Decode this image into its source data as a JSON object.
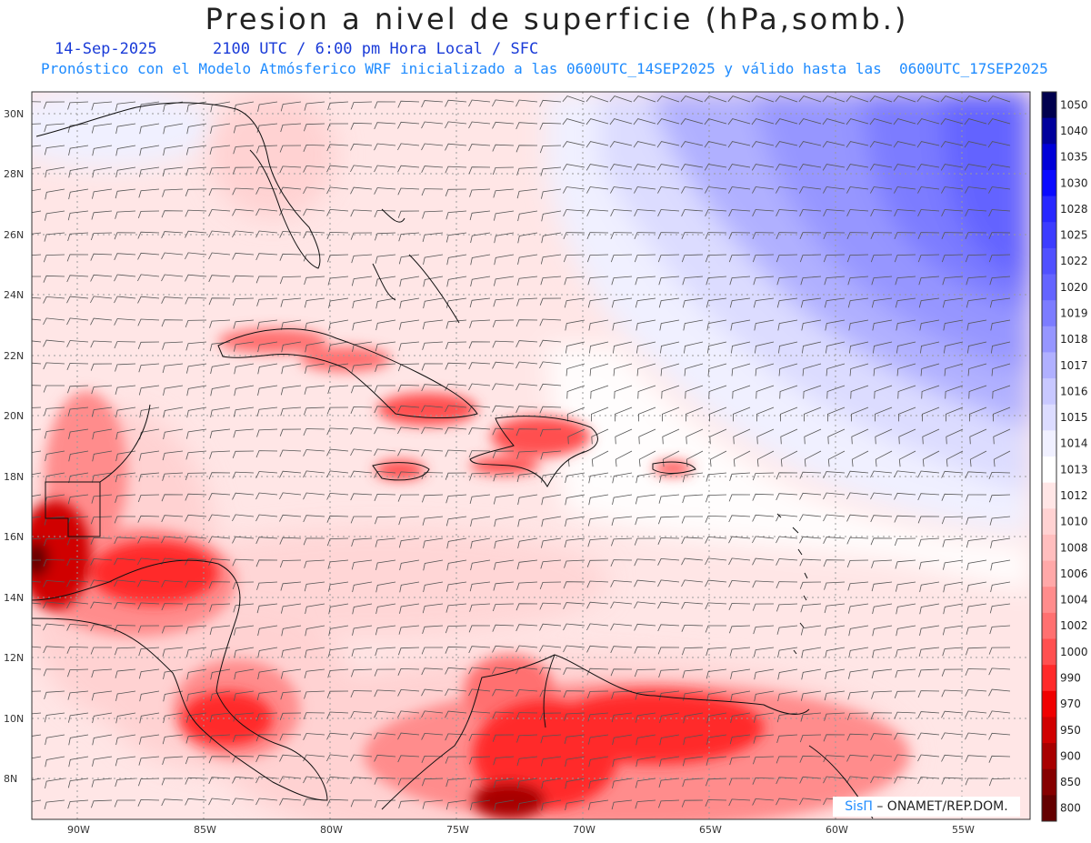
{
  "header": {
    "title": "Presion a nivel de superficie (hPa,somb.)",
    "date": "14-Sep-2025",
    "time_info": "2100 UTC / 6:00 pm Hora Local / SFC",
    "model_info": "Pronóstico con el Modelo Atmósferico WRF inicializado a las 0600UTC_14SEP2025 y válido hasta las  0600UTC_17SEP2025"
  },
  "map": {
    "lat_ticks": [
      "30N",
      "28N",
      "26N",
      "24N",
      "22N",
      "20N",
      "18N",
      "16N",
      "14N",
      "12N",
      "10N",
      "8N"
    ],
    "lon_ticks": [
      "90W",
      "85W",
      "80W",
      "75W",
      "70W",
      "65W",
      "60W",
      "55W"
    ]
  },
  "colorbar": {
    "labels": [
      "1050",
      "1040",
      "1035",
      "1030",
      "1028",
      "1025",
      "1022",
      "1020",
      "1019",
      "1018",
      "1017",
      "1016",
      "1015",
      "1014",
      "1013",
      "1012",
      "1010",
      "1008",
      "1006",
      "1004",
      "1002",
      "1000",
      "990",
      "970",
      "950",
      "900",
      "850",
      "800"
    ],
    "colors": [
      "#00004e",
      "#00009c",
      "#0000d8",
      "#0a0aff",
      "#2828ff",
      "#3c3cff",
      "#5050ff",
      "#6464ff",
      "#7c7cff",
      "#9696ff",
      "#b0b0ff",
      "#c8c8ff",
      "#dcdcff",
      "#f0f0ff",
      "#ffffff",
      "#ffe6e6",
      "#ffd2d2",
      "#ffbebe",
      "#ffa8a8",
      "#ff8c8c",
      "#ff7070",
      "#ff5050",
      "#ff2a2a",
      "#f00000",
      "#d00000",
      "#a80000",
      "#860000",
      "#640000"
    ]
  },
  "credit": {
    "brand": "SisΠ",
    "org": "– ONAMET/REP.DOM."
  }
}
